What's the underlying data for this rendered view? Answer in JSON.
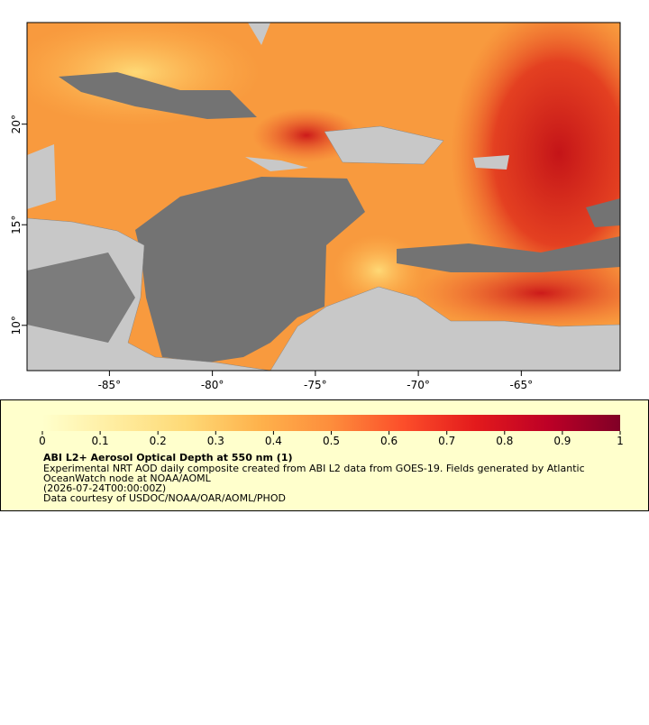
{
  "map": {
    "xlim": [
      -89,
      -60.2
    ],
    "ylim": [
      7.75,
      25.05
    ],
    "xticks": [
      {
        "value": -85,
        "label": "-85°"
      },
      {
        "value": -80,
        "label": "-80°"
      },
      {
        "value": -75,
        "label": "-75°"
      },
      {
        "value": -70,
        "label": "-70°"
      },
      {
        "value": -65,
        "label": "-65°"
      }
    ],
    "yticks": [
      {
        "value": 10,
        "label": "10°"
      },
      {
        "value": 15,
        "label": "15°"
      },
      {
        "value": 20,
        "label": "20°"
      }
    ]
  },
  "colorbar": {
    "lim": [
      0,
      1
    ],
    "ticks": [
      0,
      0.1,
      0.2,
      0.3,
      0.4,
      0.5,
      0.6,
      0.7,
      0.8,
      0.9,
      1
    ],
    "colors": [
      "#ffffcc",
      "#ffeda0",
      "#fed976",
      "#feb24c",
      "#fd8d3c",
      "#fc4e2a",
      "#e31a1c",
      "#bd0026",
      "#800026"
    ]
  },
  "legend": {
    "title": "ABI L2+ Aerosol Optical Depth at 550 nm (1)",
    "lines": [
      "Experimental NRT AOD daily composite created from ABI L2 data from GOES-19. Fields generated by Atlantic",
      "OceanWatch node at NOAA/AOML",
      "(2026-07-24T00:00:00Z)",
      "Data courtesy of USDOC/NOAA/OAR/AOML/PHOD"
    ]
  }
}
